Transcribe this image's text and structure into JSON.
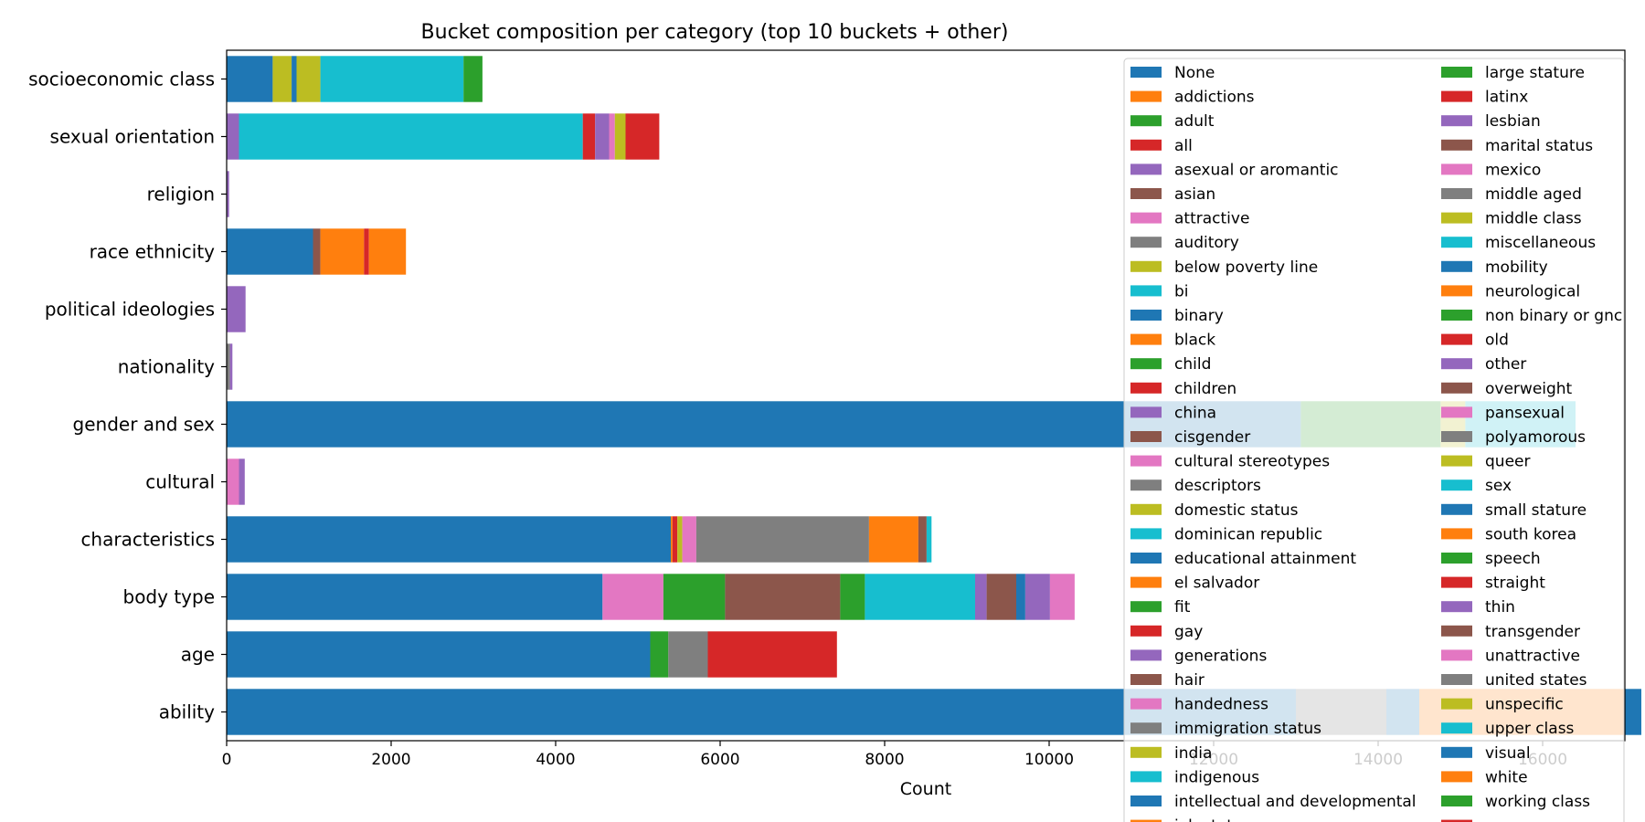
{
  "chart_data": {
    "type": "bar",
    "orientation": "horizontal",
    "stacked": true,
    "title": "Bucket composition per category (top 10 buckets + other)",
    "xlabel": "Count",
    "ylabel": "",
    "xlim": [
      0,
      17000
    ],
    "xticks": [
      0,
      2000,
      4000,
      6000,
      8000,
      10000,
      12000,
      14000,
      16000
    ],
    "grid": false,
    "legend_position": "right",
    "categories": [
      "ability",
      "age",
      "body type",
      "characteristics",
      "cultural",
      "gender and sex",
      "nationality",
      "political ideologies",
      "race ethnicity",
      "religion",
      "sexual orientation",
      "socioeconomic class"
    ],
    "legend": [
      {
        "name": "None",
        "color": "#1f77b4"
      },
      {
        "name": "addictions",
        "color": "#ff7f0e"
      },
      {
        "name": "adult",
        "color": "#2ca02c"
      },
      {
        "name": "all",
        "color": "#d62728"
      },
      {
        "name": "asexual or aromantic",
        "color": "#9467bd"
      },
      {
        "name": "asian",
        "color": "#8c564b"
      },
      {
        "name": "attractive",
        "color": "#e377c2"
      },
      {
        "name": "auditory",
        "color": "#7f7f7f"
      },
      {
        "name": "below poverty line",
        "color": "#bcbd22"
      },
      {
        "name": "bi",
        "color": "#17becf"
      },
      {
        "name": "binary",
        "color": "#1f77b4"
      },
      {
        "name": "black",
        "color": "#ff7f0e"
      },
      {
        "name": "child",
        "color": "#2ca02c"
      },
      {
        "name": "children",
        "color": "#d62728"
      },
      {
        "name": "china",
        "color": "#9467bd"
      },
      {
        "name": "cisgender",
        "color": "#8c564b"
      },
      {
        "name": "cultural stereotypes",
        "color": "#e377c2"
      },
      {
        "name": "descriptors",
        "color": "#7f7f7f"
      },
      {
        "name": "domestic status",
        "color": "#bcbd22"
      },
      {
        "name": "dominican republic",
        "color": "#17becf"
      },
      {
        "name": "educational attainment",
        "color": "#1f77b4"
      },
      {
        "name": "el salvador",
        "color": "#ff7f0e"
      },
      {
        "name": "fit",
        "color": "#2ca02c"
      },
      {
        "name": "gay",
        "color": "#d62728"
      },
      {
        "name": "generations",
        "color": "#9467bd"
      },
      {
        "name": "hair",
        "color": "#8c564b"
      },
      {
        "name": "handedness",
        "color": "#e377c2"
      },
      {
        "name": "immigration status",
        "color": "#7f7f7f"
      },
      {
        "name": "india",
        "color": "#bcbd22"
      },
      {
        "name": "indigenous",
        "color": "#17becf"
      },
      {
        "name": "intellectual and developmental",
        "color": "#1f77b4"
      },
      {
        "name": "job status",
        "color": "#ff7f0e"
      },
      {
        "name": "large stature",
        "color": "#2ca02c"
      },
      {
        "name": "latinx",
        "color": "#d62728"
      },
      {
        "name": "lesbian",
        "color": "#9467bd"
      },
      {
        "name": "marital status",
        "color": "#8c564b"
      },
      {
        "name": "mexico",
        "color": "#e377c2"
      },
      {
        "name": "middle aged",
        "color": "#7f7f7f"
      },
      {
        "name": "middle class",
        "color": "#bcbd22"
      },
      {
        "name": "miscellaneous",
        "color": "#17becf"
      },
      {
        "name": "mobility",
        "color": "#1f77b4"
      },
      {
        "name": "neurological",
        "color": "#ff7f0e"
      },
      {
        "name": "non binary or gnc",
        "color": "#2ca02c"
      },
      {
        "name": "old",
        "color": "#d62728"
      },
      {
        "name": "other",
        "color": "#9467bd"
      },
      {
        "name": "overweight",
        "color": "#8c564b"
      },
      {
        "name": "pansexual",
        "color": "#e377c2"
      },
      {
        "name": "polyamorous",
        "color": "#7f7f7f"
      },
      {
        "name": "queer",
        "color": "#bcbd22"
      },
      {
        "name": "sex",
        "color": "#17becf"
      },
      {
        "name": "small stature",
        "color": "#1f77b4"
      },
      {
        "name": "south korea",
        "color": "#ff7f0e"
      },
      {
        "name": "speech",
        "color": "#2ca02c"
      },
      {
        "name": "straight",
        "color": "#d62728"
      },
      {
        "name": "thin",
        "color": "#9467bd"
      },
      {
        "name": "transgender",
        "color": "#8c564b"
      },
      {
        "name": "unattractive",
        "color": "#e377c2"
      },
      {
        "name": "united states",
        "color": "#7f7f7f"
      },
      {
        "name": "unspecific",
        "color": "#bcbd22"
      },
      {
        "name": "upper class",
        "color": "#17becf"
      },
      {
        "name": "visual",
        "color": "#1f77b4"
      },
      {
        "name": "white",
        "color": "#ff7f0e"
      },
      {
        "name": "working class",
        "color": "#2ca02c"
      },
      {
        "name": "young",
        "color": "#d62728"
      }
    ],
    "bars": [
      {
        "category": "ability",
        "segments": [
          {
            "bucket": "None",
            "value": 13000
          },
          {
            "bucket": "auditory",
            "value": 1100
          },
          {
            "bucket": "intellectual and developmental",
            "value": 400
          },
          {
            "bucket": "neurological",
            "value": 2500
          },
          {
            "bucket": "visual",
            "value": 200
          }
        ]
      },
      {
        "category": "age",
        "segments": [
          {
            "bucket": "None",
            "value": 5150
          },
          {
            "bucket": "adult",
            "value": 220
          },
          {
            "bucket": "middle aged",
            "value": 480
          },
          {
            "bucket": "old",
            "value": 1570
          }
        ]
      },
      {
        "category": "body type",
        "segments": [
          {
            "bucket": "None",
            "value": 4570
          },
          {
            "bucket": "attractive",
            "value": 740
          },
          {
            "bucket": "fit",
            "value": 750
          },
          {
            "bucket": "hair",
            "value": 1400
          },
          {
            "bucket": "large stature",
            "value": 300
          },
          {
            "bucket": "miscellaneous",
            "value": 1340
          },
          {
            "bucket": "other",
            "value": 140
          },
          {
            "bucket": "overweight",
            "value": 360
          },
          {
            "bucket": "small stature",
            "value": 110
          },
          {
            "bucket": "thin",
            "value": 300
          },
          {
            "bucket": "unattractive",
            "value": 300
          }
        ]
      },
      {
        "category": "characteristics",
        "segments": [
          {
            "bucket": "None",
            "value": 5400
          },
          {
            "bucket": "addictions",
            "value": 20
          },
          {
            "bucket": "children",
            "value": 60
          },
          {
            "bucket": "domestic status",
            "value": 60
          },
          {
            "bucket": "handedness",
            "value": 170
          },
          {
            "bucket": "immigration status",
            "value": 2100
          },
          {
            "bucket": "job status",
            "value": 600
          },
          {
            "bucket": "marital status",
            "value": 100
          },
          {
            "bucket": "miscellaneous",
            "value": 60
          }
        ]
      },
      {
        "category": "cultural",
        "segments": [
          {
            "bucket": "cultural stereotypes",
            "value": 150
          },
          {
            "bucket": "other",
            "value": 70
          }
        ]
      },
      {
        "category": "gender and sex",
        "segments": [
          {
            "bucket": "None",
            "value": 13000
          },
          {
            "bucket": "binary",
            "value": 60
          },
          {
            "bucket": "non binary or gnc",
            "value": 1700
          },
          {
            "bucket": "queer",
            "value": 300
          },
          {
            "bucket": "sex",
            "value": 1340
          }
        ]
      },
      {
        "category": "nationality",
        "segments": [
          {
            "bucket": "united states",
            "value": 40
          },
          {
            "bucket": "other",
            "value": 30
          }
        ]
      },
      {
        "category": "political ideologies",
        "segments": [
          {
            "bucket": "other",
            "value": 230
          }
        ]
      },
      {
        "category": "race ethnicity",
        "segments": [
          {
            "bucket": "None",
            "value": 1050
          },
          {
            "bucket": "asian",
            "value": 90
          },
          {
            "bucket": "black",
            "value": 530
          },
          {
            "bucket": "latinx",
            "value": 60
          },
          {
            "bucket": "white",
            "value": 450
          }
        ]
      },
      {
        "category": "religion",
        "segments": [
          {
            "bucket": "other",
            "value": 30
          }
        ]
      },
      {
        "category": "sexual orientation",
        "segments": [
          {
            "bucket": "asexual or aromantic",
            "value": 150
          },
          {
            "bucket": "bi",
            "value": 4180
          },
          {
            "bucket": "gay",
            "value": 150
          },
          {
            "bucket": "lesbian",
            "value": 170
          },
          {
            "bucket": "pansexual",
            "value": 70
          },
          {
            "bucket": "queer",
            "value": 130
          },
          {
            "bucket": "straight",
            "value": 410
          }
        ]
      },
      {
        "category": "socioeconomic class",
        "segments": [
          {
            "bucket": "None",
            "value": 560
          },
          {
            "bucket": "below poverty line",
            "value": 230
          },
          {
            "bucket": "educational attainment",
            "value": 60
          },
          {
            "bucket": "middle class",
            "value": 290
          },
          {
            "bucket": "upper class",
            "value": 1740
          },
          {
            "bucket": "working class",
            "value": 230
          }
        ]
      }
    ]
  }
}
